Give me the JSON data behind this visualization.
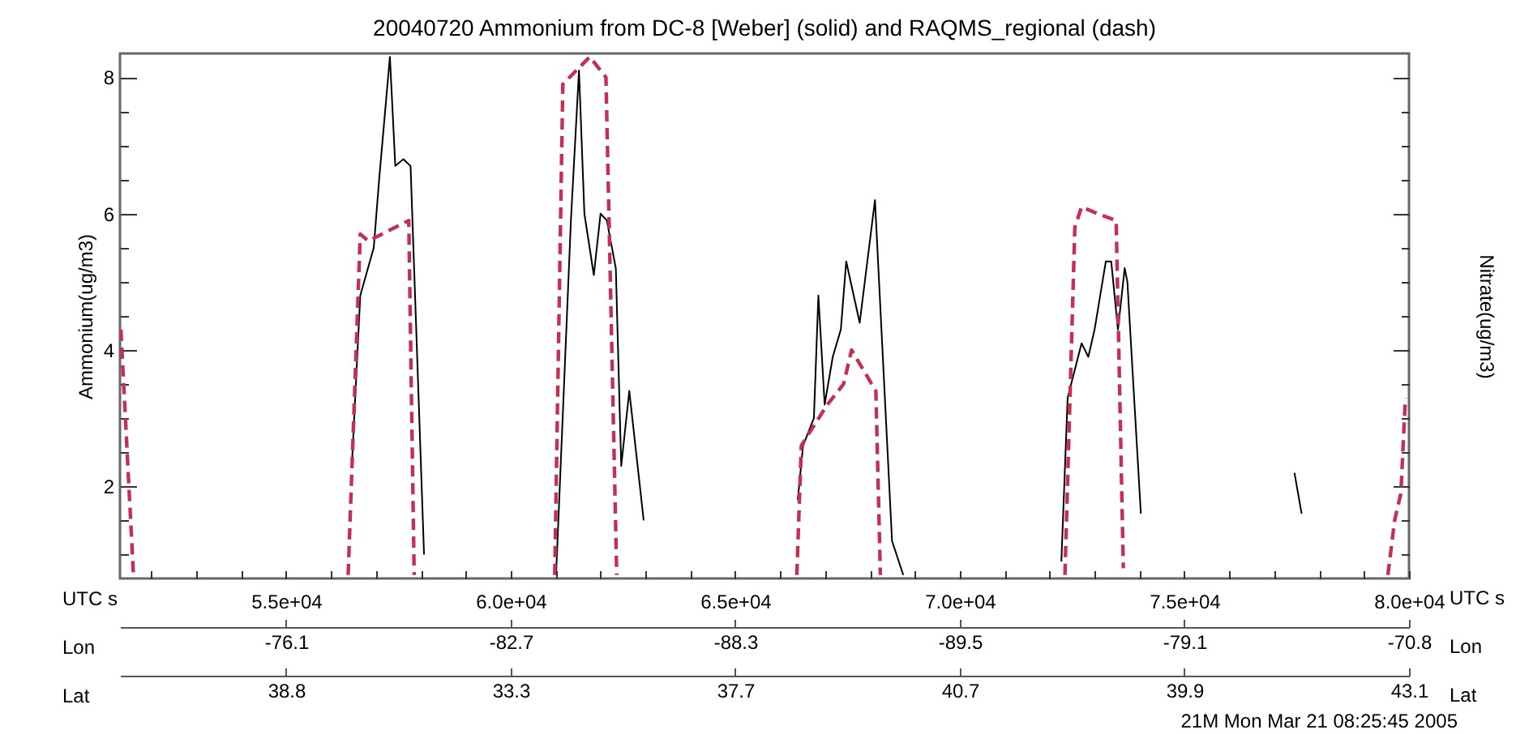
{
  "chart_data": {
    "type": "line",
    "title": "20040720 Ammonium from DC-8 [Weber] (solid) and RAQMS_regional (dash)",
    "xlabel": "UTC s",
    "ylabel": "Ammonium(ug/m3)",
    "y2label": "Nitrate(ug/m3)",
    "x2label": "Lon",
    "annotations": [
      "-76.1",
      "-82.7",
      "-88.3",
      "-89.5",
      "-79.1",
      "-70.8",
      "Lat",
      "38.8",
      "33.3",
      "37.7",
      "40.7",
      "39.9",
      "43.1",
      "21M    Mon Mar 21 08:25:45 2005"
    ],
    "xlim": [
      51300,
      80000
    ],
    "ylim": [
      0.65,
      8.35
    ],
    "xticks": [
      {
        "value": 52000,
        "label": null
      },
      {
        "value": 53000,
        "label": null
      },
      {
        "value": 54000,
        "label": null
      },
      {
        "value": 55000,
        "label": "5.5e+04"
      },
      {
        "value": 56000,
        "label": null
      },
      {
        "value": 57000,
        "label": null
      },
      {
        "value": 58000,
        "label": null
      },
      {
        "value": 59000,
        "label": null
      },
      {
        "value": 60000,
        "label": "6.0e+04"
      },
      {
        "value": 61000,
        "label": null
      },
      {
        "value": 62000,
        "label": null
      },
      {
        "value": 63000,
        "label": null
      },
      {
        "value": 64000,
        "label": null
      },
      {
        "value": 65000,
        "label": "6.5e+04"
      },
      {
        "value": 66000,
        "label": null
      },
      {
        "value": 67000,
        "label": null
      },
      {
        "value": 68000,
        "label": null
      },
      {
        "value": 69000,
        "label": null
      },
      {
        "value": 70000,
        "label": "7.0e+04"
      },
      {
        "value": 71000,
        "label": null
      },
      {
        "value": 72000,
        "label": null
      },
      {
        "value": 73000,
        "label": null
      },
      {
        "value": 74000,
        "label": null
      },
      {
        "value": 75000,
        "label": "7.5e+04"
      },
      {
        "value": 76000,
        "label": null
      },
      {
        "value": 77000,
        "label": null
      },
      {
        "value": 78000,
        "label": null
      },
      {
        "value": 79000,
        "label": null
      },
      {
        "value": 80000,
        "label": "8.0e+04"
      }
    ],
    "yticks": [
      {
        "value": 1,
        "label": null
      },
      {
        "value": 1.5,
        "label": null
      },
      2,
      {
        "value": 2.5,
        "label": null
      },
      {
        "value": 3,
        "label": null
      },
      {
        "value": 3.5,
        "label": null
      },
      4,
      {
        "value": 4.5,
        "label": null
      },
      {
        "value": 5,
        "label": null
      },
      {
        "value": 5.5,
        "label": null
      },
      6,
      {
        "value": 6.5,
        "label": null
      },
      {
        "value": 7,
        "label": null
      },
      {
        "value": 7.5,
        "label": null
      },
      8
    ],
    "series": [
      {
        "color": "#000000",
        "line_style": "solid",
        "x": [
          56470,
          56650,
          56950,
          57070,
          57310,
          57430,
          57610,
          57770,
          58070
        ],
        "values": [
          2.4,
          4.8,
          5.5,
          6.5,
          8.3,
          6.7,
          6.8,
          6.7,
          1.0
        ]
      },
      {
        "color": "#000000",
        "line_style": "solid",
        "x": [
          61010,
          61340,
          61520,
          61640,
          61850,
          62000,
          62140,
          62340,
          62460,
          62640,
          62960
        ],
        "values": [
          0.7,
          5.9,
          8.1,
          6.0,
          5.1,
          6.0,
          5.9,
          5.2,
          2.3,
          3.4,
          1.5
        ]
      },
      {
        "color": "#000000",
        "line_style": "solid",
        "x": [
          66390,
          66510,
          66750,
          66850,
          66990,
          67170,
          67350,
          67470,
          67770,
          68110,
          68490,
          68740
        ],
        "values": [
          1.8,
          2.6,
          3.0,
          4.8,
          3.2,
          3.9,
          4.3,
          5.3,
          4.4,
          6.2,
          1.2,
          0.7
        ]
      },
      {
        "color": "#000000",
        "line_style": "solid",
        "x": [
          72260,
          72400,
          72710,
          72860,
          73000,
          73250,
          73370,
          73520,
          73670,
          73730,
          74030
        ],
        "values": [
          0.9,
          3.3,
          4.1,
          3.9,
          4.3,
          5.3,
          5.3,
          4.3,
          5.2,
          5.0,
          1.6
        ]
      },
      {
        "color": "#000000",
        "line_style": "solid",
        "x": [
          77450,
          77610
        ],
        "values": [
          2.2,
          1.6
        ]
      },
      {
        "color": "#c43050",
        "line_style": "dashed",
        "x": [
          51320,
          51600
        ],
        "values": [
          4.3,
          0.7
        ]
      },
      {
        "color": "#c43050",
        "line_style": "dashed",
        "x": [
          56380,
          56650,
          56830,
          57730,
          57850
        ],
        "values": [
          0.7,
          5.7,
          5.6,
          5.9,
          0.7
        ]
      },
      {
        "color": "#c43050",
        "line_style": "dashed",
        "x": [
          60980,
          61160,
          61760,
          62120,
          62360
        ],
        "values": [
          0.7,
          7.9,
          8.3,
          8.0,
          0.7
        ]
      },
      {
        "color": "#c43050",
        "line_style": "dashed",
        "x": [
          66370,
          66470,
          67050,
          67410,
          67590,
          68130,
          68230
        ],
        "values": [
          0.7,
          2.6,
          3.2,
          3.5,
          4.0,
          3.4,
          0.7
        ]
      },
      {
        "color": "#c43050",
        "line_style": "dashed",
        "x": [
          72340,
          72560,
          72710,
          73070,
          73480,
          73640
        ],
        "values": [
          0.7,
          5.8,
          6.1,
          6.0,
          5.9,
          0.8
        ]
      },
      {
        "color": "#c43050",
        "line_style": "dashed",
        "x": [
          79530,
          79680,
          79820,
          79920
        ],
        "values": [
          0.7,
          1.5,
          1.9,
          3.3
        ]
      }
    ]
  }
}
